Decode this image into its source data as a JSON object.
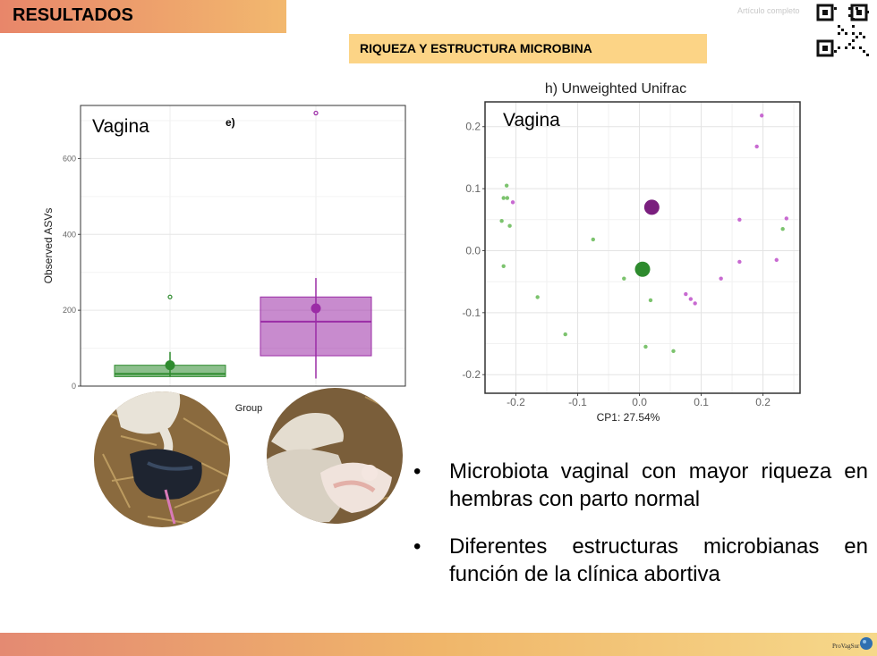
{
  "header": {
    "title": "RESULTADOS",
    "link_text": "Artículo completo"
  },
  "section": {
    "title": "RIQUEZA Y ESTRUCTURA MICROBINA"
  },
  "bullets": [
    {
      "marker": "•",
      "text": "Microbiota vaginal con mayor riqueza en hembras con parto normal"
    },
    {
      "marker": "•",
      "text": "Diferentes estructuras microbianas en función de la clínica abortiva"
    }
  ],
  "footer": {
    "logo_text": "ProVagSur"
  },
  "colors": {
    "green": "#2e8b2e",
    "purple": "#9b2ca6",
    "header_band": "#f0a86c",
    "subtitle_band": "#fcd486"
  },
  "icons": [
    "qr-code-icon",
    "logo-icon"
  ],
  "chart_data": [
    {
      "type": "box",
      "panel_label": "Vagina",
      "panel_tag": "e)",
      "ylabel": "Observed ASVs",
      "xlabel": "Group",
      "ylim": [
        0,
        740
      ],
      "yticks": [
        "0",
        "200",
        "400",
        "600"
      ],
      "grid": true,
      "groups": [
        {
          "color": "#2e8b2e",
          "q1": 25,
          "median": 32,
          "q3": 55,
          "whisker_low": 25,
          "whisker_high": 90,
          "mean": 55,
          "outliers": [
            235
          ]
        },
        {
          "color": "#9b2ca6",
          "q1": 80,
          "median": 170,
          "q3": 235,
          "whisker_low": 20,
          "whisker_high": 285,
          "mean": 205,
          "outliers": [
            720
          ]
        }
      ]
    },
    {
      "type": "scatter",
      "title": "h) Unweighted Unifrac",
      "panel_label": "Vagina",
      "xlabel": "CP1: 27.54%",
      "xlim": [
        -0.25,
        0.26
      ],
      "ylim": [
        -0.23,
        0.24
      ],
      "xticks": [
        "-0.2",
        "-0.1",
        "0.0",
        "0.1",
        "0.2"
      ],
      "yticks": [
        "0.2",
        "0.1",
        "0.0",
        "-0.1",
        "-0.2"
      ],
      "grid": true,
      "series": [
        {
          "color": "#7cc36e",
          "points": [
            [
              -0.215,
              0.105
            ],
            [
              -0.22,
              0.085
            ],
            [
              -0.214,
              0.085
            ],
            [
              -0.223,
              0.048
            ],
            [
              -0.21,
              0.04
            ],
            [
              -0.075,
              0.018
            ],
            [
              -0.22,
              -0.025
            ],
            [
              -0.025,
              -0.045
            ],
            [
              -0.165,
              -0.075
            ],
            [
              0.018,
              -0.08
            ],
            [
              -0.12,
              -0.135
            ],
            [
              0.01,
              -0.155
            ],
            [
              0.055,
              -0.162
            ],
            [
              0.232,
              0.035
            ]
          ]
        },
        {
          "color": "#c86ad1",
          "points": [
            [
              -0.205,
              0.078
            ],
            [
              0.198,
              0.218
            ],
            [
              0.19,
              0.168
            ],
            [
              0.162,
              0.05
            ],
            [
              0.238,
              0.052
            ],
            [
              0.162,
              -0.018
            ],
            [
              0.222,
              -0.015
            ],
            [
              0.132,
              -0.045
            ],
            [
              0.075,
              -0.07
            ],
            [
              0.083,
              -0.078
            ],
            [
              0.09,
              -0.085
            ]
          ]
        }
      ],
      "centroids": [
        {
          "color": "#2e8b2e",
          "point": [
            0.005,
            -0.03
          ]
        },
        {
          "color": "#7a1f7e",
          "point": [
            0.02,
            0.07
          ]
        }
      ]
    }
  ]
}
